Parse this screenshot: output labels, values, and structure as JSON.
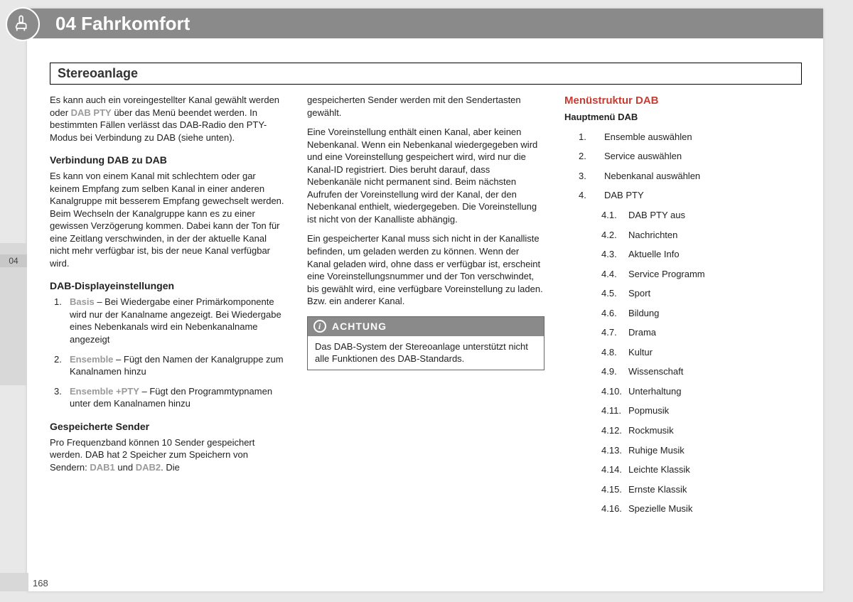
{
  "header": {
    "chapter_title": "04 Fahrkomfort",
    "section_title": "Stereoanlage",
    "side_tab": "04",
    "page_number": "168"
  },
  "col1": {
    "p1_a": "Es kann auch ein voreingestellter Kanal gewählt werden oder ",
    "p1_bold": "DAB PTY",
    "p1_b": " über das Menü beendet werden. In bestimmten Fällen verlässt das DAB-Radio den PTY-Modus bei Verbindung zu DAB (siehe unten).",
    "h1": "Verbindung DAB zu DAB",
    "p2": "Es kann von einem Kanal mit schlechtem oder gar keinem Empfang zum selben Kanal in einer anderen Kanalgruppe mit besserem Empfang gewechselt werden. Beim Wechseln der Kanalgruppe kann es zu einer gewissen Verzögerung kommen. Dabei kann der Ton für eine Zeitlang verschwinden, in der der aktuelle Kanal nicht mehr verfügbar ist, bis der neue Kanal verfügbar wird.",
    "h2": "DAB-Displayeinstellungen",
    "list": [
      {
        "n": "1.",
        "lead": "Basis",
        "rest": " – Bei Wiedergabe einer Primärkomponente wird nur der Kanalname angezeigt. Bei Wiedergabe eines Nebenkanals wird ein Nebenkanalname angezeigt"
      },
      {
        "n": "2.",
        "lead": "Ensemble",
        "rest": " – Fügt den Namen der Kanalgruppe zum Kanalnamen hinzu"
      },
      {
        "n": "3.",
        "lead": "Ensemble +PTY",
        "rest": " – Fügt den Programmtypnamen unter dem Kanalnamen hinzu"
      }
    ],
    "h3": "Gespeicherte Sender",
    "p3_a": "Pro Frequenzband können 10 Sender gespeichert werden. DAB hat 2 Speicher zum Speichern von Sendern: ",
    "p3_b1": "DAB1",
    "p3_mid": " und ",
    "p3_b2": "DAB2",
    "p3_end": ". Die"
  },
  "col2": {
    "p1": "gespeicherten Sender werden mit den Sendertasten gewählt.",
    "p2": "Eine Voreinstellung enthält einen Kanal, aber keinen Nebenkanal. Wenn ein Nebenkanal wiedergegeben wird und eine Voreinstellung gespeichert wird, wird nur die Kanal-ID registriert. Dies beruht darauf, dass Nebenkanäle nicht permanent sind. Beim nächsten Aufrufen der Voreinstellung wird der Kanal, der den Nebenkanal enthielt, wiedergegeben. Die Voreinstellung ist nicht von der Kanalliste abhängig.",
    "p3": "Ein gespeicherter Kanal muss sich nicht in der Kanalliste befinden, um geladen werden zu können. Wenn der Kanal geladen wird, ohne dass er verfügbar ist, erscheint eine Voreinstellungsnummer und der Ton verschwindet, bis gewählt wird, eine verfügbare Voreinstellung zu laden. Bzw. ein anderer Kanal.",
    "callout_title": "ACHTUNG",
    "callout_body": "Das DAB-System der Stereoanlage unterstützt nicht alle Funktionen des DAB-Standards."
  },
  "col3": {
    "red_title": "Menüstruktur DAB",
    "menu_title": "Hauptmenü DAB",
    "top": [
      {
        "n": "1.",
        "t": "Ensemble auswählen"
      },
      {
        "n": "2.",
        "t": "Service auswählen"
      },
      {
        "n": "3.",
        "t": "Nebenkanal auswählen"
      },
      {
        "n": "4.",
        "t": "DAB PTY"
      }
    ],
    "sub": [
      {
        "n": "4.1.",
        "t": "DAB PTY aus"
      },
      {
        "n": "4.2.",
        "t": "Nachrichten"
      },
      {
        "n": "4.3.",
        "t": "Aktuelle Info"
      },
      {
        "n": "4.4.",
        "t": "Service Programm"
      },
      {
        "n": "4.5.",
        "t": "Sport"
      },
      {
        "n": "4.6.",
        "t": "Bildung"
      },
      {
        "n": "4.7.",
        "t": "Drama"
      },
      {
        "n": "4.8.",
        "t": "Kultur"
      },
      {
        "n": "4.9.",
        "t": "Wissenschaft"
      },
      {
        "n": "4.10.",
        "t": "Unterhaltung"
      },
      {
        "n": "4.11.",
        "t": "Popmusik"
      },
      {
        "n": "4.12.",
        "t": "Rockmusik"
      },
      {
        "n": "4.13.",
        "t": "Ruhige Musik"
      },
      {
        "n": "4.14.",
        "t": "Leichte Klassik"
      },
      {
        "n": "4.15.",
        "t": "Ernste Klassik"
      },
      {
        "n": "4.16.",
        "t": "Spezielle Musik"
      }
    ]
  }
}
